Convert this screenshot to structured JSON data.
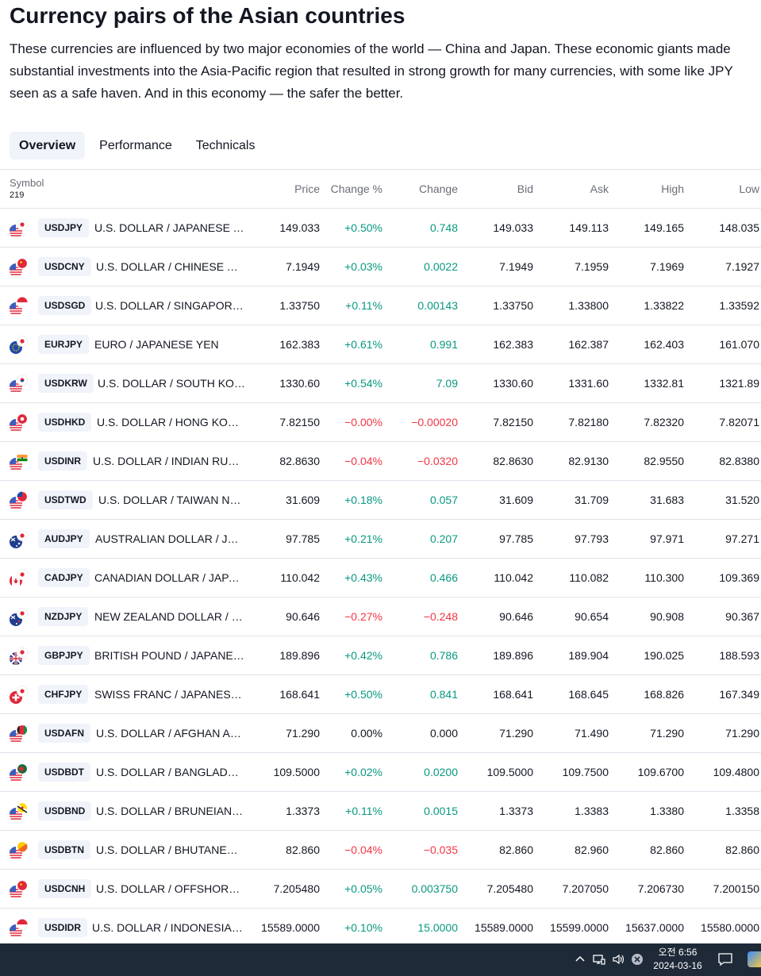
{
  "page": {
    "title": "Currency pairs of the Asian countries",
    "description": "These currencies are influenced by two major economies of the world — China and Japan. These economic giants made substantial investments into the Asia-Pacific region that resulted in strong growth for many currencies, with some like JPY seen as a safe haven. And in this economy — the safer the better."
  },
  "tabs": [
    {
      "label": "Overview",
      "active": true
    },
    {
      "label": "Performance",
      "active": false
    },
    {
      "label": "Technicals",
      "active": false
    }
  ],
  "table": {
    "headers": {
      "symbol": "Symbol",
      "count": "219",
      "price": "Price",
      "change_pct": "Change %",
      "change": "Change",
      "bid": "Bid",
      "ask": "Ask",
      "high": "High",
      "low": "Low"
    },
    "rows": [
      {
        "ticker": "USDJPY",
        "name": "U.S. DOLLAR / JAPANESE YEN",
        "price": "149.033",
        "change_pct": "+0.50%",
        "change": "0.748",
        "bid": "149.033",
        "ask": "149.113",
        "high": "149.165",
        "low": "148.035",
        "dir": "pos",
        "flag_a": "us",
        "flag_b": "jp"
      },
      {
        "ticker": "USDCNY",
        "name": "U.S. DOLLAR / CHINESE YUAN",
        "price": "7.1949",
        "change_pct": "+0.03%",
        "change": "0.0022",
        "bid": "7.1949",
        "ask": "7.1959",
        "high": "7.1969",
        "low": "7.1927",
        "dir": "pos",
        "flag_a": "us",
        "flag_b": "cn"
      },
      {
        "ticker": "USDSGD",
        "name": "U.S. DOLLAR / SINGAPORE D…",
        "price": "1.33750",
        "change_pct": "+0.11%",
        "change": "0.00143",
        "bid": "1.33750",
        "ask": "1.33800",
        "high": "1.33822",
        "low": "1.33592",
        "dir": "pos",
        "flag_a": "us",
        "flag_b": "sg"
      },
      {
        "ticker": "EURJPY",
        "name": "EURO / JAPANESE YEN",
        "price": "162.383",
        "change_pct": "+0.61%",
        "change": "0.991",
        "bid": "162.383",
        "ask": "162.387",
        "high": "162.403",
        "low": "161.070",
        "dir": "pos",
        "flag_a": "eu",
        "flag_b": "jp"
      },
      {
        "ticker": "USDKRW",
        "name": "U.S. DOLLAR / SOUTH KORE…",
        "price": "1330.60",
        "change_pct": "+0.54%",
        "change": "7.09",
        "bid": "1330.60",
        "ask": "1331.60",
        "high": "1332.81",
        "low": "1321.89",
        "dir": "pos",
        "flag_a": "us",
        "flag_b": "kr"
      },
      {
        "ticker": "USDHKD",
        "name": "U.S. DOLLAR / HONG KONG …",
        "price": "7.82150",
        "change_pct": "−0.00%",
        "change": "−0.00020",
        "bid": "7.82150",
        "ask": "7.82180",
        "high": "7.82320",
        "low": "7.82071",
        "dir": "neg",
        "flag_a": "us",
        "flag_b": "hk"
      },
      {
        "ticker": "USDINR",
        "name": "U.S. DOLLAR / INDIAN RUPEE",
        "price": "82.8630",
        "change_pct": "−0.04%",
        "change": "−0.0320",
        "bid": "82.8630",
        "ask": "82.9130",
        "high": "82.9550",
        "low": "82.8380",
        "dir": "neg",
        "flag_a": "us",
        "flag_b": "in"
      },
      {
        "ticker": "USDTWD",
        "name": "U.S. DOLLAR / TAIWAN NEW…",
        "price": "31.609",
        "change_pct": "+0.18%",
        "change": "0.057",
        "bid": "31.609",
        "ask": "31.709",
        "high": "31.683",
        "low": "31.520",
        "dir": "pos",
        "flag_a": "us",
        "flag_b": "tw"
      },
      {
        "ticker": "AUDJPY",
        "name": "AUSTRALIAN DOLLAR / JAPA…",
        "price": "97.785",
        "change_pct": "+0.21%",
        "change": "0.207",
        "bid": "97.785",
        "ask": "97.793",
        "high": "97.971",
        "low": "97.271",
        "dir": "pos",
        "flag_a": "au",
        "flag_b": "jp"
      },
      {
        "ticker": "CADJPY",
        "name": "CANADIAN DOLLAR / JAPANE…",
        "price": "110.042",
        "change_pct": "+0.43%",
        "change": "0.466",
        "bid": "110.042",
        "ask": "110.082",
        "high": "110.300",
        "low": "109.369",
        "dir": "pos",
        "flag_a": "ca",
        "flag_b": "jp"
      },
      {
        "ticker": "NZDJPY",
        "name": "NEW ZEALAND DOLLAR / JA…",
        "price": "90.646",
        "change_pct": "−0.27%",
        "change": "−0.248",
        "bid": "90.646",
        "ask": "90.654",
        "high": "90.908",
        "low": "90.367",
        "dir": "neg",
        "flag_a": "nz",
        "flag_b": "jp"
      },
      {
        "ticker": "GBPJPY",
        "name": "BRITISH POUND / JAPANESE …",
        "price": "189.896",
        "change_pct": "+0.42%",
        "change": "0.786",
        "bid": "189.896",
        "ask": "189.904",
        "high": "190.025",
        "low": "188.593",
        "dir": "pos",
        "flag_a": "gb",
        "flag_b": "jp"
      },
      {
        "ticker": "CHFJPY",
        "name": "SWISS FRANC / JAPANESE YEN",
        "price": "168.641",
        "change_pct": "+0.50%",
        "change": "0.841",
        "bid": "168.641",
        "ask": "168.645",
        "high": "168.826",
        "low": "167.349",
        "dir": "pos",
        "flag_a": "ch",
        "flag_b": "jp"
      },
      {
        "ticker": "USDAFN",
        "name": "U.S. DOLLAR / AFGHAN AFG…",
        "price": "71.290",
        "change_pct": "0.00%",
        "change": "0.000",
        "bid": "71.290",
        "ask": "71.490",
        "high": "71.290",
        "low": "71.290",
        "dir": "neu",
        "flag_a": "us",
        "flag_b": "af"
      },
      {
        "ticker": "USDBDT",
        "name": "U.S. DOLLAR / BANGLADESH…",
        "price": "109.5000",
        "change_pct": "+0.02%",
        "change": "0.0200",
        "bid": "109.5000",
        "ask": "109.7500",
        "high": "109.6700",
        "low": "109.4800",
        "dir": "pos",
        "flag_a": "us",
        "flag_b": "bd"
      },
      {
        "ticker": "USDBND",
        "name": "U.S. DOLLAR / BRUNEIAN D…",
        "price": "1.3373",
        "change_pct": "+0.11%",
        "change": "0.0015",
        "bid": "1.3373",
        "ask": "1.3383",
        "high": "1.3380",
        "low": "1.3358",
        "dir": "pos",
        "flag_a": "us",
        "flag_b": "bn"
      },
      {
        "ticker": "USDBTN",
        "name": "U.S. DOLLAR / BHUTANESE …",
        "price": "82.860",
        "change_pct": "−0.04%",
        "change": "−0.035",
        "bid": "82.860",
        "ask": "82.960",
        "high": "82.860",
        "low": "82.860",
        "dir": "neg",
        "flag_a": "us",
        "flag_b": "bt"
      },
      {
        "ticker": "USDCNH",
        "name": "U.S. DOLLAR / OFFSHORE C…",
        "price": "7.205480",
        "change_pct": "+0.05%",
        "change": "0.003750",
        "bid": "7.205480",
        "ask": "7.207050",
        "high": "7.206730",
        "low": "7.200150",
        "dir": "pos",
        "flag_a": "us",
        "flag_b": "cn"
      },
      {
        "ticker": "USDIDR",
        "name": "U.S. DOLLAR / INDONESIAN …",
        "price": "15589.0000",
        "change_pct": "+0.10%",
        "change": "15.0000",
        "bid": "15589.0000",
        "ask": "15599.0000",
        "high": "15637.0000",
        "low": "15580.0000",
        "dir": "pos",
        "flag_a": "us",
        "flag_b": "id"
      }
    ]
  },
  "taskbar": {
    "time": "오전 6:56",
    "date": "2024-03-16",
    "icons": [
      "chevron-up-icon",
      "network-icon",
      "volume-icon",
      "close-circle-icon",
      "notification-icon"
    ]
  },
  "colors": {
    "positive": "#089981",
    "negative": "#f23645",
    "ticker_bg": "#f0f3fa",
    "taskbar_bg": "#1e2a38"
  }
}
